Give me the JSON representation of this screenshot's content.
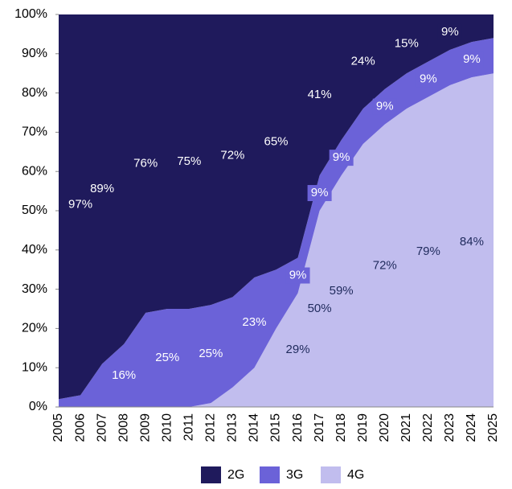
{
  "chart_data": {
    "type": "stacked-area",
    "categories": [
      "2005",
      "2006",
      "2007",
      "2008",
      "2009",
      "2010",
      "2011",
      "2012",
      "2013",
      "2014",
      "2015",
      "2016",
      "2017",
      "2018",
      "2019",
      "2020",
      "2021",
      "2022",
      "2023",
      "2024",
      "2025"
    ],
    "series": [
      {
        "name": "2G",
        "color": "#1f1a5c",
        "label_color": "#ffffff",
        "values": [
          98,
          97,
          89,
          84,
          76,
          75,
          75,
          74,
          72,
          67,
          65,
          62,
          41,
          32,
          24,
          19,
          15,
          12,
          9,
          7,
          6
        ],
        "value_labels": [
          null,
          "97%",
          "89%",
          null,
          "76%",
          null,
          "75%",
          null,
          "72%",
          null,
          "65%",
          null,
          "41%",
          null,
          "24%",
          null,
          "15%",
          null,
          "9%",
          null,
          null
        ]
      },
      {
        "name": "3G",
        "color": "#6b62d8",
        "label_color": "#ffffff",
        "values": [
          2,
          3,
          11,
          16,
          24,
          25,
          25,
          25,
          23,
          23,
          15,
          9,
          9,
          9,
          9,
          9,
          9,
          9,
          9,
          9,
          9
        ],
        "value_labels": [
          null,
          null,
          null,
          "16%",
          null,
          "25%",
          null,
          "25%",
          null,
          "23%",
          null,
          "9%",
          "9%",
          "9%",
          null,
          "9%",
          null,
          "9%",
          null,
          "9%",
          null
        ]
      },
      {
        "name": "4G",
        "color": "#c1bdee",
        "label_color": "#1f2a5c",
        "values": [
          0,
          0,
          0,
          0,
          0,
          0,
          0,
          1,
          5,
          10,
          20,
          29,
          50,
          59,
          67,
          72,
          76,
          79,
          82,
          84,
          85
        ],
        "value_labels": [
          null,
          null,
          null,
          null,
          null,
          null,
          null,
          null,
          null,
          null,
          null,
          "29%",
          "50%",
          "59%",
          null,
          "72%",
          null,
          "79%",
          null,
          "84%",
          null
        ]
      }
    ],
    "ylim": [
      0,
      100
    ],
    "yticks": [
      {
        "value": 0,
        "label": "0%"
      },
      {
        "value": 10,
        "label": "10%"
      },
      {
        "value": 20,
        "label": "20%"
      },
      {
        "value": 30,
        "label": "30%"
      },
      {
        "value": 40,
        "label": "40%"
      },
      {
        "value": 50,
        "label": "50%"
      },
      {
        "value": 60,
        "label": "60%"
      },
      {
        "value": 70,
        "label": "70%"
      },
      {
        "value": 80,
        "label": "80%"
      },
      {
        "value": 90,
        "label": "90%"
      },
      {
        "value": 100,
        "label": "100%"
      }
    ],
    "legend": "bottom"
  }
}
